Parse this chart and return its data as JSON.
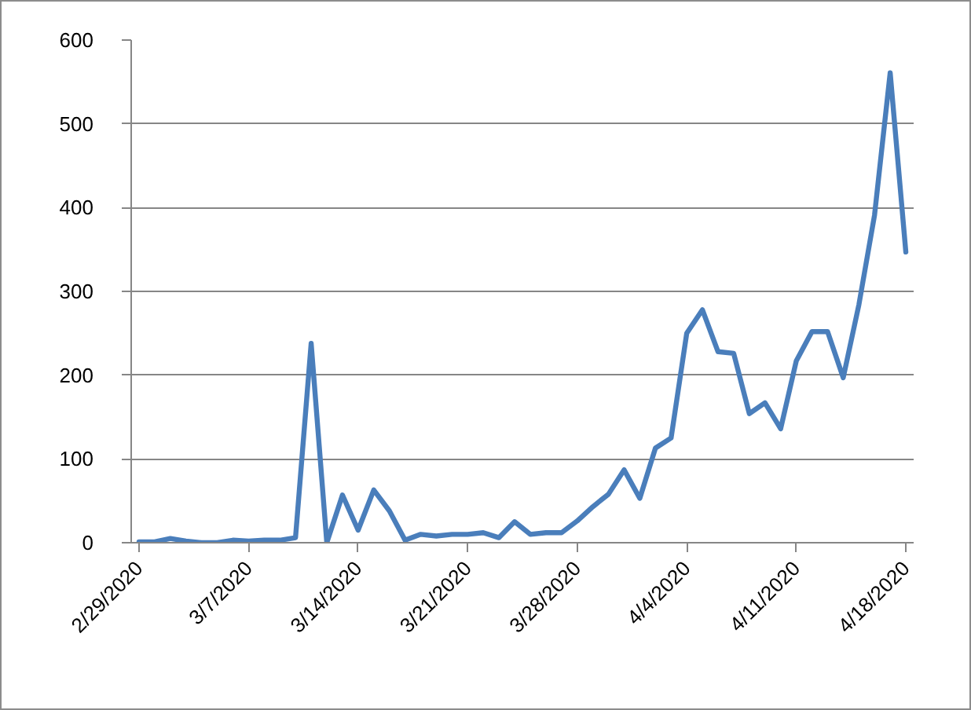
{
  "chart_data": {
    "type": "line",
    "x": [
      "2020-02-29",
      "2020-03-01",
      "2020-03-02",
      "2020-03-03",
      "2020-03-04",
      "2020-03-05",
      "2020-03-06",
      "2020-03-07",
      "2020-03-08",
      "2020-03-09",
      "2020-03-10",
      "2020-03-11",
      "2020-03-12",
      "2020-03-13",
      "2020-03-14",
      "2020-03-15",
      "2020-03-16",
      "2020-03-17",
      "2020-03-18",
      "2020-03-19",
      "2020-03-20",
      "2020-03-21",
      "2020-03-22",
      "2020-03-23",
      "2020-03-24",
      "2020-03-25",
      "2020-03-26",
      "2020-03-27",
      "2020-03-28",
      "2020-03-29",
      "2020-03-30",
      "2020-03-31",
      "2020-04-01",
      "2020-04-02",
      "2020-04-03",
      "2020-04-04",
      "2020-04-05",
      "2020-04-06",
      "2020-04-07",
      "2020-04-08",
      "2020-04-09",
      "2020-04-10",
      "2020-04-11",
      "2020-04-12",
      "2020-04-13",
      "2020-04-14",
      "2020-04-15",
      "2020-04-16",
      "2020-04-17",
      "2020-04-18"
    ],
    "values": [
      1,
      1,
      5,
      2,
      0,
      0,
      3,
      2,
      3,
      3,
      6,
      238,
      0,
      57,
      15,
      63,
      38,
      3,
      10,
      8,
      10,
      10,
      12,
      6,
      25,
      10,
      12,
      12,
      26,
      43,
      58,
      87,
      53,
      113,
      125,
      250,
      278,
      228,
      226,
      154,
      167,
      136,
      217,
      252,
      252,
      197,
      284,
      391,
      561,
      347
    ],
    "color": "#4a7ebb",
    "line_style": "solid",
    "xlim": [
      "2020-02-28T12:00",
      "2020-04-18T12:00"
    ],
    "xticks": [
      {
        "value": "2020-02-29",
        "label": "2/29/2020"
      },
      {
        "value": "2020-03-07",
        "label": "3/7/2020"
      },
      {
        "value": "2020-03-14",
        "label": "3/14/2020"
      },
      {
        "value": "2020-03-21",
        "label": "3/21/2020"
      },
      {
        "value": "2020-03-28",
        "label": "3/28/2020"
      },
      {
        "value": "2020-04-04",
        "label": "4/4/2020"
      },
      {
        "value": "2020-04-11",
        "label": "4/11/2020"
      },
      {
        "value": "2020-04-18",
        "label": "4/18/2020"
      }
    ],
    "ylim": [
      0,
      600
    ],
    "yticks": [
      0,
      100,
      200,
      300,
      400,
      500,
      600
    ],
    "grid": "y"
  }
}
